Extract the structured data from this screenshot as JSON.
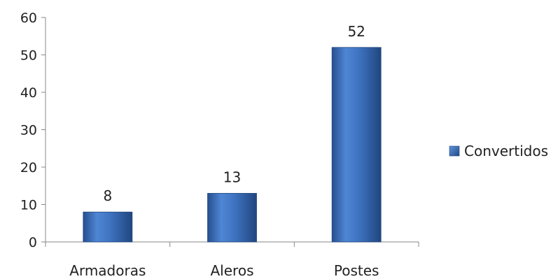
{
  "chart_data": {
    "type": "bar",
    "categories": [
      "Armadoras",
      "Aleros",
      "Postes"
    ],
    "series": [
      {
        "name": "Convertidos",
        "values": [
          8,
          13,
          52
        ],
        "color": "#3f74c2"
      }
    ],
    "ylim": [
      0,
      60
    ],
    "yticks": [
      0,
      10,
      20,
      30,
      40,
      50,
      60
    ],
    "grid": false,
    "legend": "right",
    "data_labels": true
  }
}
